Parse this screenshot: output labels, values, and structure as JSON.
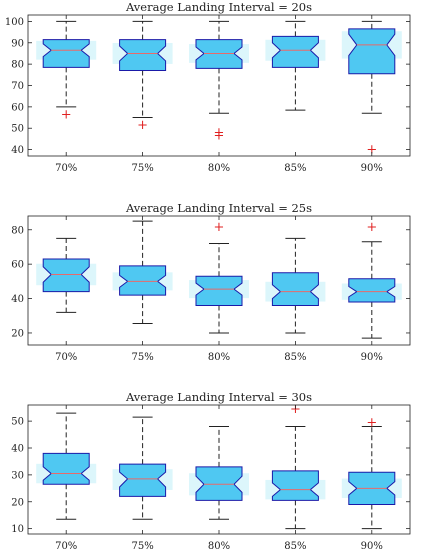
{
  "chart_data": [
    {
      "type": "boxplot",
      "title": "Average Landing Interval = 20s",
      "categories": [
        "70%",
        "75%",
        "80%",
        "85%",
        "90%"
      ],
      "ylim": [
        37,
        103
      ],
      "yticks": [
        40,
        50,
        60,
        70,
        80,
        90,
        100
      ],
      "notched": true,
      "boxes": [
        {
          "whisker_low": 60,
          "q1": 78.5,
          "median": 86.5,
          "q3": 91.5,
          "whisker_high": 100,
          "notch_low": 83.5,
          "notch_high": 89.5,
          "outliers": [
            56.5
          ]
        },
        {
          "whisker_low": 55,
          "q1": 77,
          "median": 85,
          "q3": 91.5,
          "whisker_high": 100,
          "notch_low": 81.5,
          "notch_high": 88.5,
          "outliers": [
            51.5
          ]
        },
        {
          "whisker_low": 57,
          "q1": 78,
          "median": 85,
          "q3": 91.5,
          "whisker_high": 100,
          "notch_low": 82,
          "notch_high": 88,
          "outliers": [
            48,
            46.5
          ]
        },
        {
          "whisker_low": 58.5,
          "q1": 78.5,
          "median": 86.5,
          "q3": 93,
          "whisker_high": 100,
          "notch_low": 83,
          "notch_high": 90,
          "outliers": []
        },
        {
          "whisker_low": 57,
          "q1": 75.5,
          "median": 89,
          "q3": 96.5,
          "whisker_high": 100,
          "notch_low": 84,
          "notch_high": 94,
          "outliers": [
            40
          ]
        }
      ]
    },
    {
      "type": "boxplot",
      "title": "Average Landing Interval = 25s",
      "categories": [
        "70%",
        "75%",
        "80%",
        "85%",
        "90%"
      ],
      "ylim": [
        13,
        88
      ],
      "yticks": [
        20,
        40,
        60,
        80
      ],
      "notched": true,
      "boxes": [
        {
          "whisker_low": 32,
          "q1": 44,
          "median": 54,
          "q3": 63,
          "whisker_high": 75,
          "notch_low": 49.5,
          "notch_high": 58.5,
          "outliers": []
        },
        {
          "whisker_low": 25.5,
          "q1": 42,
          "median": 50,
          "q3": 59,
          "whisker_high": 85,
          "notch_low": 46.5,
          "notch_high": 53.5,
          "outliers": []
        },
        {
          "whisker_low": 20,
          "q1": 36,
          "median": 45.5,
          "q3": 53,
          "whisker_high": 72,
          "notch_low": 42,
          "notch_high": 49,
          "outliers": [
            81.5
          ]
        },
        {
          "whisker_low": 20,
          "q1": 36,
          "median": 44,
          "q3": 55,
          "whisker_high": 75,
          "notch_low": 40,
          "notch_high": 48,
          "outliers": []
        },
        {
          "whisker_low": 17,
          "q1": 38,
          "median": 44,
          "q3": 51.5,
          "whisker_high": 73,
          "notch_low": 41,
          "notch_high": 47,
          "outliers": [
            81.5
          ]
        }
      ]
    },
    {
      "type": "boxplot",
      "title": "Average Landing Interval = 30s",
      "categories": [
        "70%",
        "75%",
        "80%",
        "85%",
        "90%"
      ],
      "ylim": [
        8,
        56
      ],
      "yticks": [
        10,
        20,
        30,
        40,
        50
      ],
      "notched": true,
      "boxes": [
        {
          "whisker_low": 13.5,
          "q1": 26.5,
          "median": 30.5,
          "q3": 38,
          "whisker_high": 53,
          "notch_low": 28,
          "notch_high": 33,
          "outliers": []
        },
        {
          "whisker_low": 13.5,
          "q1": 22,
          "median": 28.5,
          "q3": 34,
          "whisker_high": 51.5,
          "notch_low": 25.5,
          "notch_high": 31,
          "outliers": []
        },
        {
          "whisker_low": 13.5,
          "q1": 20.5,
          "median": 26.5,
          "q3": 33,
          "whisker_high": 48,
          "notch_low": 23.5,
          "notch_high": 29.5,
          "outliers": []
        },
        {
          "whisker_low": 10,
          "q1": 20.5,
          "median": 24.5,
          "q3": 31.5,
          "whisker_high": 48,
          "notch_low": 22,
          "notch_high": 27,
          "outliers": [
            54.5
          ]
        },
        {
          "whisker_low": 10,
          "q1": 19,
          "median": 25,
          "q3": 31,
          "whisker_high": 48,
          "notch_low": 22.5,
          "notch_high": 27.5,
          "outliers": [
            49.5
          ]
        }
      ]
    }
  ],
  "colors": {
    "box_fill": "#4fc8f2",
    "box_edge": "#1a1aa8",
    "median": "#e86a6a",
    "halo": "#dcf6fb",
    "whisker": "#222222",
    "outlier": "#e02020",
    "axis": "#222222"
  }
}
